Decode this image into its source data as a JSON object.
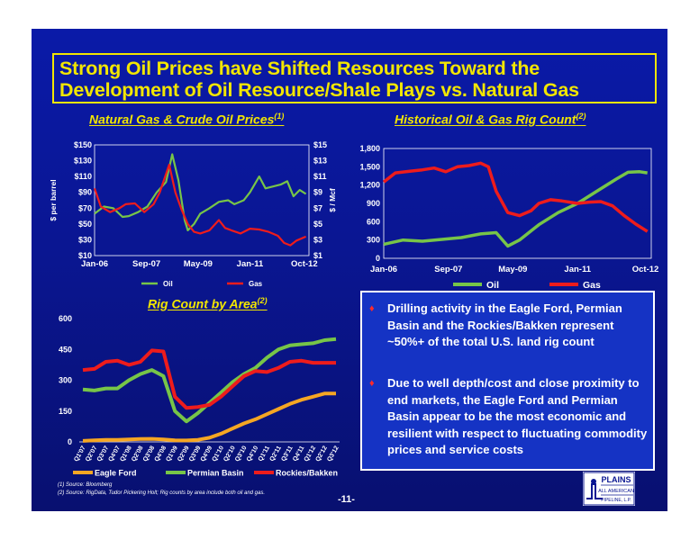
{
  "title": {
    "line1": "Strong Oil Prices have Shifted Resources Toward the",
    "line2": "Development of Oil Resource/Shale Plays vs. Natural Gas"
  },
  "prices_panel": {
    "title": "Natural Gas & Crude Oil Prices",
    "note": "(1)"
  },
  "rig_panel": {
    "title": "Historical Oil & Gas Rig Count",
    "note": "(2)"
  },
  "area_panel": {
    "title": "Rig Count by Area",
    "note": "(2)"
  },
  "bullets": [
    "Drilling activity in the Eagle Ford, Permian Basin and the Rockies/Bakken represent ~50%+ of the total U.S. land rig count",
    "Due to well depth/cost and close proximity to end markets, the Eagle Ford and Permian Basin appear to be the most economic and resilient with respect to fluctuating commodity prices and service costs"
  ],
  "sources": [
    "(1) Source: Bloomberg",
    "(2) Source: RigData, Tudor Pickering Holt; Rig counts by area include both oil and gas."
  ],
  "page_number": "-11-",
  "logo": {
    "line1": "PLAINS",
    "line2": "ALL AMERICAN",
    "line3": "PIPELINE, L.P."
  },
  "colors": {
    "oil": "#77c548",
    "gas": "#ee1c1c",
    "eagle_ford": "#f5a623",
    "permian": "#77c548",
    "rockies": "#ee1c1c",
    "title": "#f2e600"
  },
  "chart_data": [
    {
      "type": "line",
      "title": "Natural Gas & Crude Oil Prices",
      "x_ticks": [
        "Jan-06",
        "Sep-07",
        "May-09",
        "Jan-11",
        "Oct-12"
      ],
      "ylabel": "$ per barrel",
      "y2label": "$ / Mcf",
      "ylim": [
        10,
        150
      ],
      "y2lim": [
        1,
        15
      ],
      "y_ticks": [
        "$10",
        "$30",
        "$50",
        "$70",
        "$90",
        "$110",
        "$130",
        "$150"
      ],
      "y2_ticks": [
        "$1",
        "$3",
        "$5",
        "$7",
        "$9",
        "$11",
        "$13",
        "$15"
      ],
      "legend": "bottom",
      "series": [
        {
          "name": "Oil",
          "axis": "left",
          "color": "#77c548",
          "x": [
            2006.0,
            2006.3,
            2006.6,
            2006.9,
            2007.1,
            2007.4,
            2007.7,
            2008.0,
            2008.3,
            2008.5,
            2008.7,
            2008.9,
            2009.0,
            2009.2,
            2009.4,
            2009.7,
            2010.0,
            2010.3,
            2010.5,
            2010.8,
            2011.0,
            2011.3,
            2011.5,
            2011.8,
            2012.0,
            2012.2,
            2012.4,
            2012.6,
            2012.8
          ],
          "y": [
            63,
            72,
            70,
            59,
            60,
            65,
            72,
            90,
            103,
            138,
            105,
            55,
            42,
            50,
            63,
            70,
            78,
            80,
            75,
            80,
            90,
            110,
            95,
            98,
            100,
            104,
            85,
            93,
            88
          ]
        },
        {
          "name": "Gas",
          "axis": "right",
          "color": "#ee1c1c",
          "x": [
            2006.0,
            2006.2,
            2006.5,
            2006.8,
            2007.0,
            2007.3,
            2007.6,
            2007.9,
            2008.1,
            2008.4,
            2008.6,
            2008.8,
            2009.0,
            2009.2,
            2009.4,
            2009.7,
            2010.0,
            2010.2,
            2010.4,
            2010.7,
            2011.0,
            2011.3,
            2011.6,
            2011.9,
            2012.1,
            2012.3,
            2012.5,
            2012.8
          ],
          "y": [
            9.5,
            7.2,
            6.5,
            7.0,
            7.5,
            7.6,
            6.5,
            7.5,
            9.0,
            12.5,
            9.0,
            6.8,
            5.0,
            4.0,
            3.8,
            4.2,
            5.5,
            4.5,
            4.2,
            3.8,
            4.4,
            4.3,
            4.0,
            3.5,
            2.6,
            2.3,
            2.9,
            3.4
          ]
        }
      ]
    },
    {
      "type": "line",
      "title": "Historical Oil & Gas Rig Count",
      "x_ticks": [
        "Jan-06",
        "Sep-07",
        "May-09",
        "Jan-11",
        "Oct-12"
      ],
      "ylim": [
        0,
        1800
      ],
      "y_ticks": [
        "0",
        "300",
        "600",
        "900",
        "1,200",
        "1,500",
        "1,800"
      ],
      "legend": "bottom",
      "series": [
        {
          "name": "Oil",
          "color": "#77c548",
          "x": [
            2006.0,
            2006.5,
            2007.0,
            2007.5,
            2008.0,
            2008.5,
            2008.9,
            2009.2,
            2009.5,
            2010.0,
            2010.5,
            2011.0,
            2011.5,
            2012.0,
            2012.3,
            2012.6,
            2012.8
          ],
          "y": [
            230,
            300,
            280,
            310,
            340,
            400,
            420,
            200,
            300,
            550,
            750,
            900,
            1100,
            1300,
            1410,
            1420,
            1400
          ]
        },
        {
          "name": "Gas",
          "color": "#ee1c1c",
          "x": [
            2006.0,
            2006.3,
            2006.7,
            2007.0,
            2007.3,
            2007.6,
            2007.9,
            2008.2,
            2008.5,
            2008.7,
            2008.9,
            2009.2,
            2009.5,
            2009.8,
            2010.0,
            2010.3,
            2010.6,
            2011.0,
            2011.3,
            2011.6,
            2011.9,
            2012.2,
            2012.5,
            2012.8
          ],
          "y": [
            1250,
            1400,
            1430,
            1450,
            1480,
            1420,
            1500,
            1520,
            1560,
            1500,
            1100,
            750,
            700,
            780,
            900,
            960,
            940,
            900,
            920,
            930,
            860,
            700,
            560,
            440
          ]
        }
      ]
    },
    {
      "type": "line",
      "title": "Rig Count by Area",
      "categories": [
        "Q1'07",
        "Q2'07",
        "Q3'07",
        "Q4'07",
        "Q1'08",
        "Q2'08",
        "Q3'08",
        "Q4'08",
        "Q1'09",
        "Q2'09",
        "Q3'09",
        "Q4'09",
        "Q1'10",
        "Q2'10",
        "Q3'10",
        "Q4'10",
        "Q1'11",
        "Q2'11",
        "Q3'11",
        "Q4'11",
        "Q1'12",
        "Q2'12",
        "Q3'12"
      ],
      "ylim": [
        0,
        600
      ],
      "y_ticks": [
        "0",
        "150",
        "300",
        "450",
        "600"
      ],
      "legend": "bottom",
      "series": [
        {
          "name": "Eagle Ford",
          "color": "#f5a623",
          "values": [
            5,
            8,
            10,
            10,
            12,
            14,
            15,
            12,
            8,
            7,
            10,
            20,
            40,
            65,
            90,
            110,
            135,
            160,
            185,
            205,
            220,
            235,
            235
          ]
        },
        {
          "name": "Permian Basin",
          "color": "#77c548",
          "values": [
            255,
            250,
            260,
            260,
            300,
            330,
            350,
            320,
            150,
            100,
            140,
            190,
            240,
            290,
            330,
            360,
            410,
            450,
            470,
            475,
            480,
            495,
            500
          ]
        },
        {
          "name": "Rockies/Bakken",
          "color": "#ee1c1c",
          "values": [
            350,
            355,
            390,
            395,
            375,
            390,
            445,
            440,
            220,
            165,
            170,
            180,
            220,
            270,
            320,
            345,
            340,
            360,
            390,
            395,
            385,
            385,
            385
          ]
        }
      ]
    }
  ]
}
